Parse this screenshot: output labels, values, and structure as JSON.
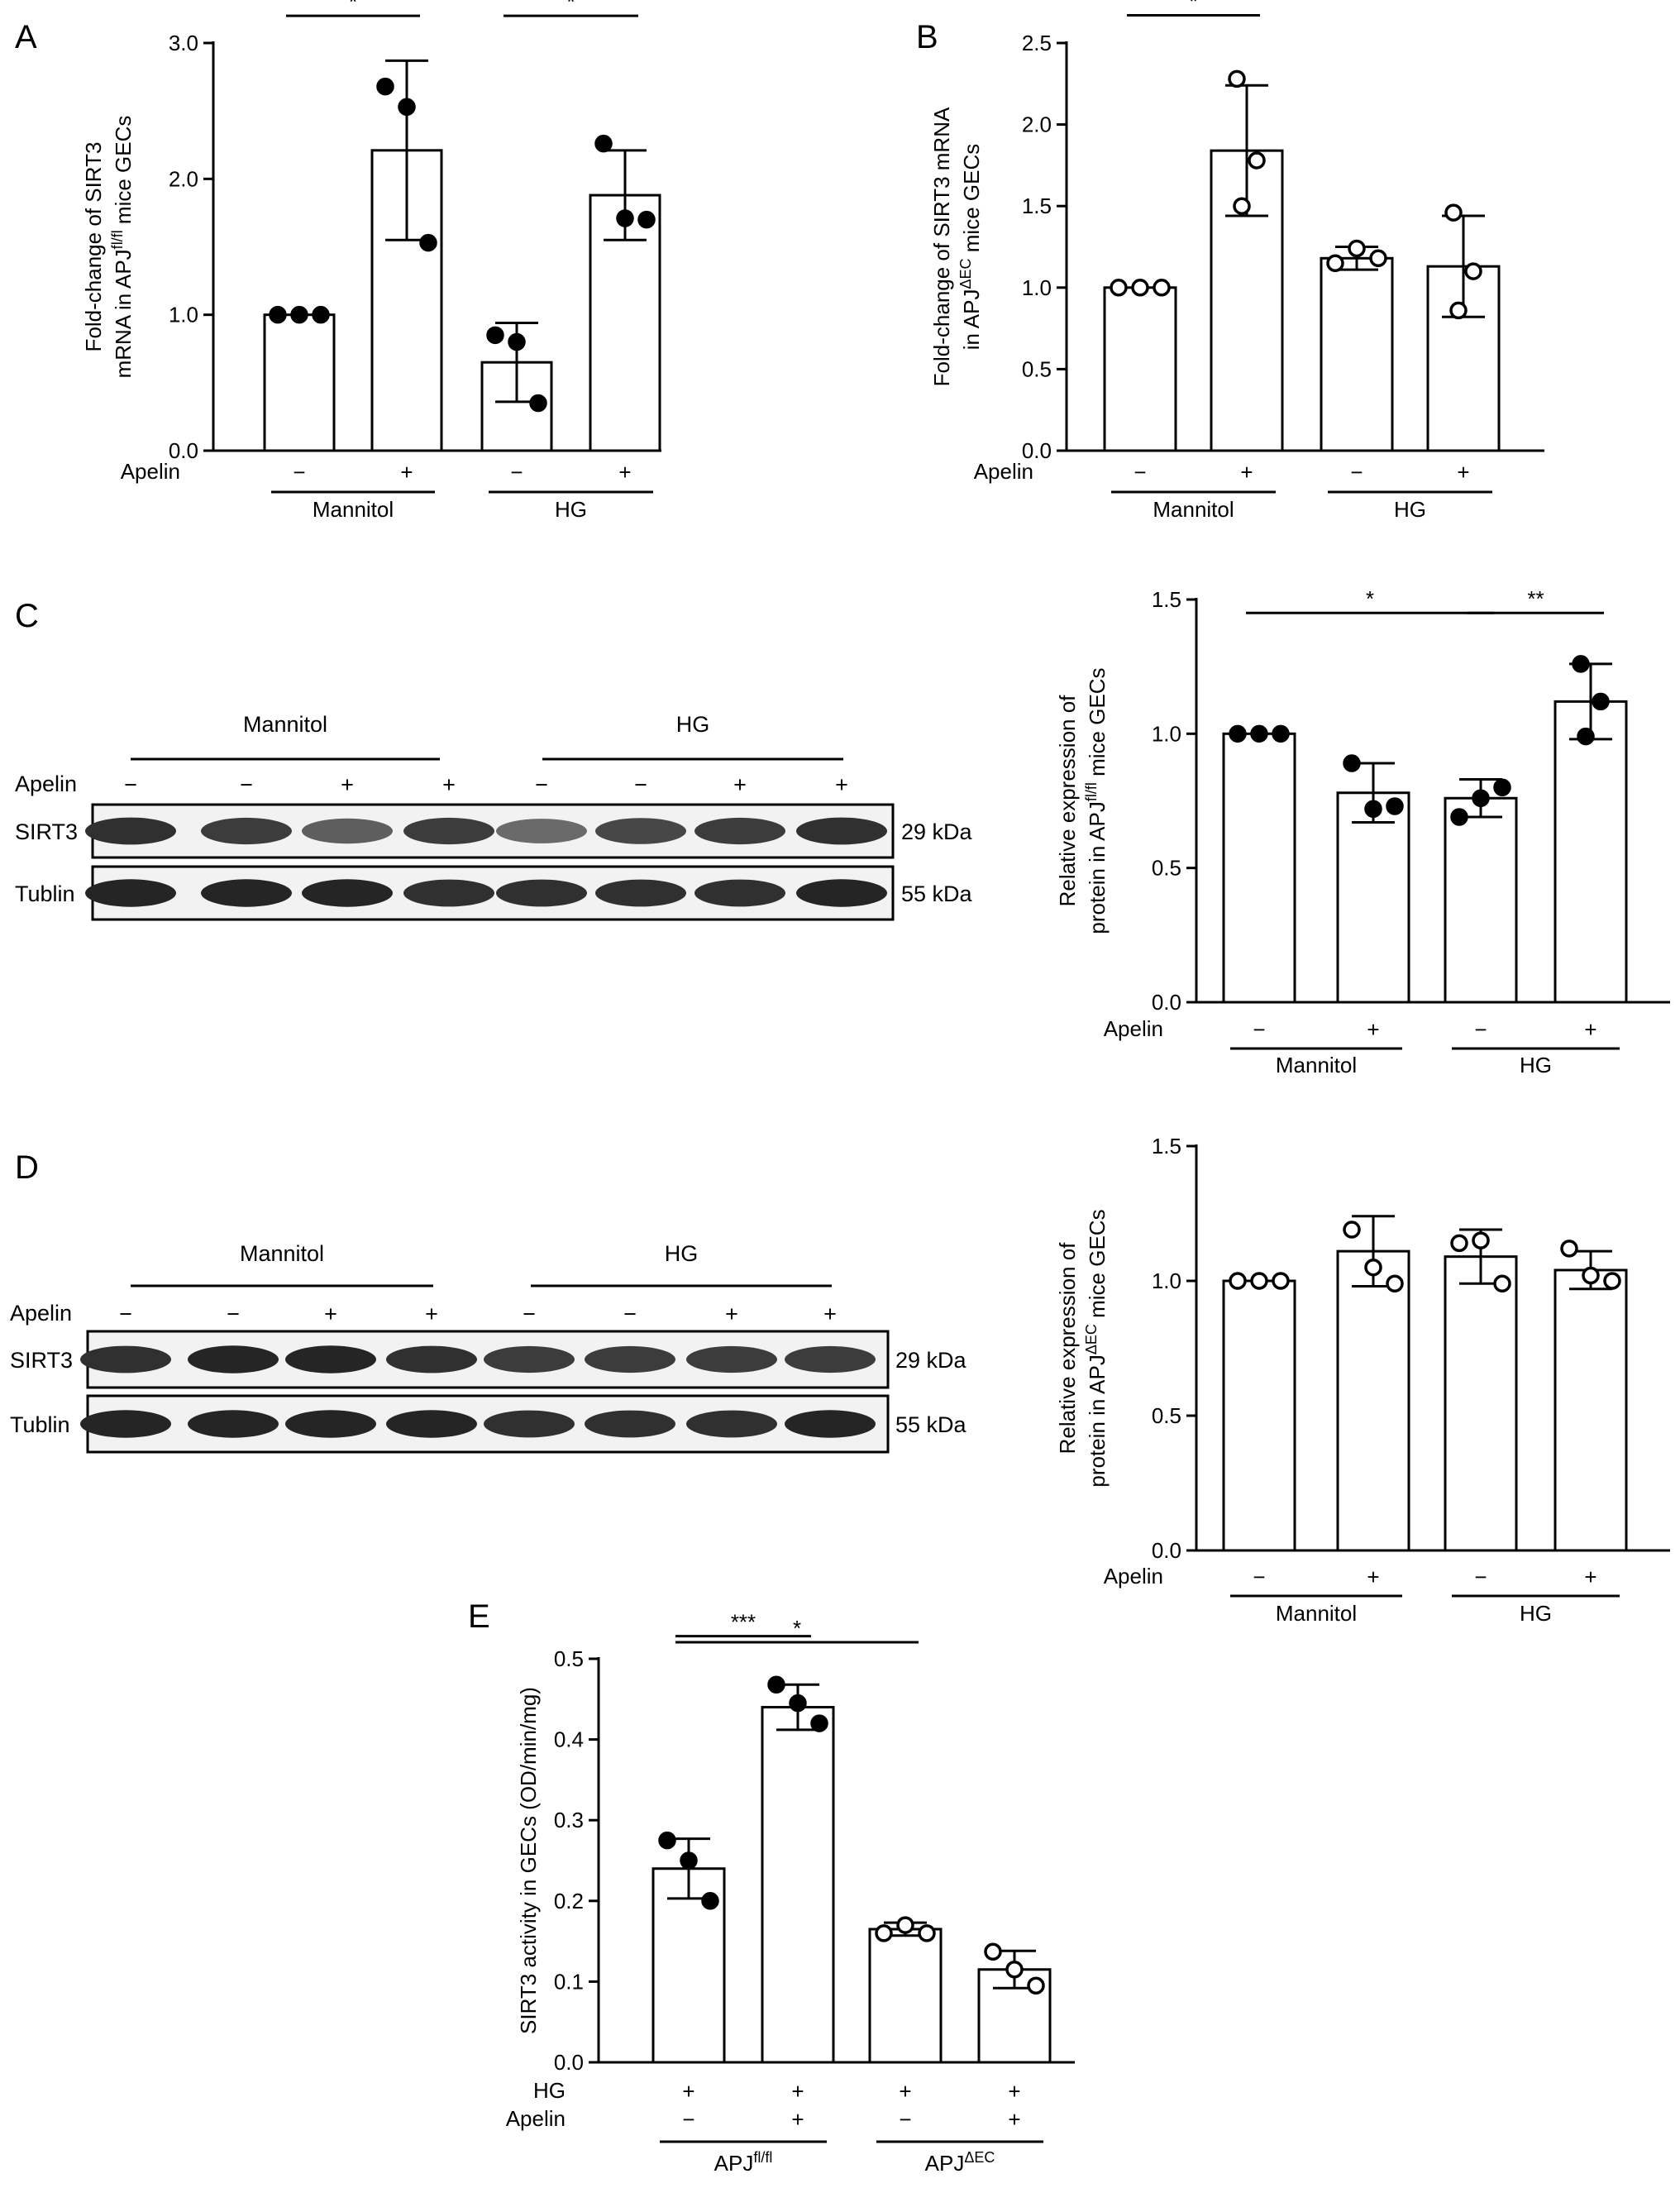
{
  "panel_letters": [
    "A",
    "B",
    "C",
    "D",
    "E"
  ],
  "blots": {
    "C": {
      "group_labels": [
        "Mannitol",
        "HG"
      ],
      "apelin_label": "Apelin",
      "apelin_signs": [
        "−",
        "−",
        "+",
        "+",
        "−",
        "−",
        "+",
        "+"
      ],
      "rows": [
        {
          "name": "SIRT3",
          "size": "29 kDa",
          "intensities": [
            0.9,
            0.85,
            0.7,
            0.85,
            0.65,
            0.8,
            0.85,
            0.9
          ]
        },
        {
          "name": "Tublin",
          "size": "55 kDa",
          "intensities": [
            0.95,
            0.95,
            0.95,
            0.9,
            0.9,
            0.9,
            0.9,
            0.95
          ]
        }
      ]
    },
    "D": {
      "group_labels": [
        "Mannitol",
        "HG"
      ],
      "apelin_label": "Apelin",
      "apelin_signs": [
        "−",
        "−",
        "+",
        "+",
        "−",
        "−",
        "+",
        "+"
      ],
      "rows": [
        {
          "name": "SIRT3",
          "size": "29 kDa",
          "intensities": [
            0.9,
            0.95,
            0.95,
            0.9,
            0.85,
            0.85,
            0.85,
            0.85
          ]
        },
        {
          "name": "Tublin",
          "size": "55 kDa",
          "intensities": [
            0.95,
            0.95,
            0.95,
            0.95,
            0.9,
            0.9,
            0.9,
            0.95
          ]
        }
      ]
    }
  },
  "chart_data": [
    {
      "panel": "A",
      "type": "bar",
      "title": "",
      "ylabel_lines": [
        "Fold-change of SIRT3",
        "mRNA in APJ",
        "fl/fl",
        " mice GECs"
      ],
      "ylim": [
        0,
        3.0
      ],
      "yticks": [
        "0.0",
        "1.0",
        "2.0",
        "3.0"
      ],
      "ytick_values": [
        0,
        1,
        2,
        3
      ],
      "factor_rows": [
        {
          "label": "Apelin",
          "signs": [
            "−",
            "+",
            "−",
            "+"
          ]
        }
      ],
      "groups": [
        {
          "label": "Mannitol",
          "bars": [
            0,
            1
          ]
        },
        {
          "label": "HG",
          "bars": [
            2,
            3
          ]
        }
      ],
      "categories": [
        "Mannitol −",
        "Mannitol +",
        "HG −",
        "HG +"
      ],
      "values": [
        1.0,
        2.21,
        0.65,
        1.88
      ],
      "sd": [
        0.0,
        0.66,
        0.29,
        0.33
      ],
      "points": [
        [
          1.0,
          1.0,
          1.0
        ],
        [
          2.68,
          2.53,
          1.53
        ],
        [
          0.85,
          0.8,
          0.35
        ],
        [
          2.26,
          1.71,
          1.7
        ]
      ],
      "marker": "filled",
      "significance": [
        {
          "from": 0,
          "to": 1,
          "label": "*",
          "level": 3.2
        },
        {
          "from": 2,
          "to": 3,
          "label": "*",
          "level": 3.2
        }
      ]
    },
    {
      "panel": "B",
      "type": "bar",
      "title": "",
      "ylabel_lines": [
        "Fold-change of SIRT3 mRNA",
        "in APJ",
        "ΔEC",
        " mice GECs"
      ],
      "ylim": [
        0,
        2.5
      ],
      "yticks": [
        "0.0",
        "0.5",
        "1.0",
        "1.5",
        "2.0",
        "2.5"
      ],
      "ytick_values": [
        0,
        0.5,
        1.0,
        1.5,
        2.0,
        2.5
      ],
      "factor_rows": [
        {
          "label": "Apelin",
          "signs": [
            "−",
            "+",
            "−",
            "+"
          ]
        }
      ],
      "groups": [
        {
          "label": "Mannitol",
          "bars": [
            0,
            1
          ]
        },
        {
          "label": "HG",
          "bars": [
            2,
            3
          ]
        }
      ],
      "categories": [
        "Mannitol −",
        "Mannitol +",
        "HG −",
        "HG +"
      ],
      "values": [
        1.0,
        1.84,
        1.18,
        1.13
      ],
      "sd": [
        0.0,
        0.4,
        0.07,
        0.31
      ],
      "points": [
        [
          1.0,
          1.0,
          1.0
        ],
        [
          2.28,
          1.78,
          1.5
        ],
        [
          1.15,
          1.24,
          1.18
        ],
        [
          1.46,
          1.1,
          0.86
        ]
      ],
      "marker": "open",
      "significance": [
        {
          "from": 0,
          "to": 1,
          "label": "*",
          "level": 2.67
        }
      ]
    },
    {
      "panel": "C",
      "type": "bar",
      "title": "",
      "ylabel_lines": [
        "Relative expression of",
        "protein in APJ",
        "fl/fl",
        " mice GECs"
      ],
      "ylim": [
        0,
        1.5
      ],
      "yticks": [
        "0.0",
        "0.5",
        "1.0",
        "1.5"
      ],
      "ytick_values": [
        0,
        0.5,
        1.0,
        1.5
      ],
      "factor_rows": [
        {
          "label": "Apelin",
          "signs": [
            "−",
            "+",
            "−",
            "+"
          ]
        }
      ],
      "groups": [
        {
          "label": "Mannitol",
          "bars": [
            0,
            1
          ]
        },
        {
          "label": "HG",
          "bars": [
            2,
            3
          ]
        }
      ],
      "categories": [
        "Mannitol −",
        "Mannitol +",
        "HG −",
        "HG +"
      ],
      "values": [
        1.0,
        0.78,
        0.76,
        1.12
      ],
      "sd": [
        0.0,
        0.11,
        0.07,
        0.14
      ],
      "points": [
        [
          1.0,
          1.0,
          1.0
        ],
        [
          0.89,
          0.72,
          0.73
        ],
        [
          0.69,
          0.76,
          0.8
        ],
        [
          1.26,
          1.12,
          0.99
        ]
      ],
      "marker": "filled",
      "significance": [
        {
          "from": 0,
          "to": 2,
          "label": "*",
          "level": 1.45
        },
        {
          "from": 2,
          "to": 3,
          "label": "**",
          "level": 1.45
        }
      ]
    },
    {
      "panel": "D",
      "type": "bar",
      "title": "",
      "ylabel_lines": [
        "Relative expression of",
        "protein in APJ",
        "ΔEC",
        " mice GECs"
      ],
      "ylim": [
        0,
        1.5
      ],
      "yticks": [
        "0.0",
        "0.5",
        "1.0",
        "1.5"
      ],
      "ytick_values": [
        0,
        0.5,
        1.0,
        1.5
      ],
      "factor_rows": [
        {
          "label": "Apelin",
          "signs": [
            "−",
            "+",
            "−",
            "+"
          ]
        }
      ],
      "groups": [
        {
          "label": "Mannitol",
          "bars": [
            0,
            1
          ]
        },
        {
          "label": "HG",
          "bars": [
            2,
            3
          ]
        }
      ],
      "categories": [
        "Mannitol −",
        "Mannitol +",
        "HG −",
        "HG +"
      ],
      "values": [
        1.0,
        1.11,
        1.09,
        1.04
      ],
      "sd": [
        0.0,
        0.13,
        0.1,
        0.07
      ],
      "points": [
        [
          1.0,
          1.0,
          1.0
        ],
        [
          1.19,
          1.05,
          0.99
        ],
        [
          1.14,
          1.15,
          0.99
        ],
        [
          1.12,
          1.02,
          1.0
        ]
      ],
      "marker": "open",
      "significance": []
    },
    {
      "panel": "E",
      "type": "bar",
      "title": "",
      "ylabel_lines": [
        "SIRT3 activity in GECs (OD/min/mg)"
      ],
      "ylim": [
        0,
        0.5
      ],
      "yticks": [
        "0.0",
        "0.1",
        "0.2",
        "0.3",
        "0.4",
        "0.5"
      ],
      "ytick_values": [
        0,
        0.1,
        0.2,
        0.3,
        0.4,
        0.5
      ],
      "factor_rows": [
        {
          "label": "HG",
          "signs": [
            "+",
            "+",
            "+",
            "+"
          ]
        },
        {
          "label": "Apelin",
          "signs": [
            "−",
            "+",
            "−",
            "+"
          ]
        }
      ],
      "groups": [
        {
          "label": "APJ",
          "label_sup": "fl/fl",
          "bars": [
            0,
            1
          ]
        },
        {
          "label": "APJ",
          "label_sup": "ΔEC",
          "bars": [
            2,
            3
          ]
        }
      ],
      "categories": [
        "APJfl/fl HG+ Apelin−",
        "APJfl/fl HG+ Apelin+",
        "APJΔEC HG+ Apelin−",
        "APJΔEC HG+ Apelin+"
      ],
      "values": [
        0.24,
        0.44,
        0.165,
        0.115
      ],
      "sd": [
        0.037,
        0.028,
        0.008,
        0.023
      ],
      "points": [
        [
          0.275,
          0.25,
          0.2
        ],
        [
          0.468,
          0.445,
          0.42
        ],
        [
          0.16,
          0.17,
          0.16
        ],
        [
          0.137,
          0.115,
          0.095
        ]
      ],
      "marker_per_bar": [
        "filled",
        "filled",
        "open",
        "open"
      ],
      "significance": [
        {
          "from": 0,
          "to": 1,
          "label": "***",
          "level": 0.528
        },
        {
          "from": 0,
          "to": 2,
          "label": "*",
          "level": 0.56
        }
      ]
    }
  ]
}
